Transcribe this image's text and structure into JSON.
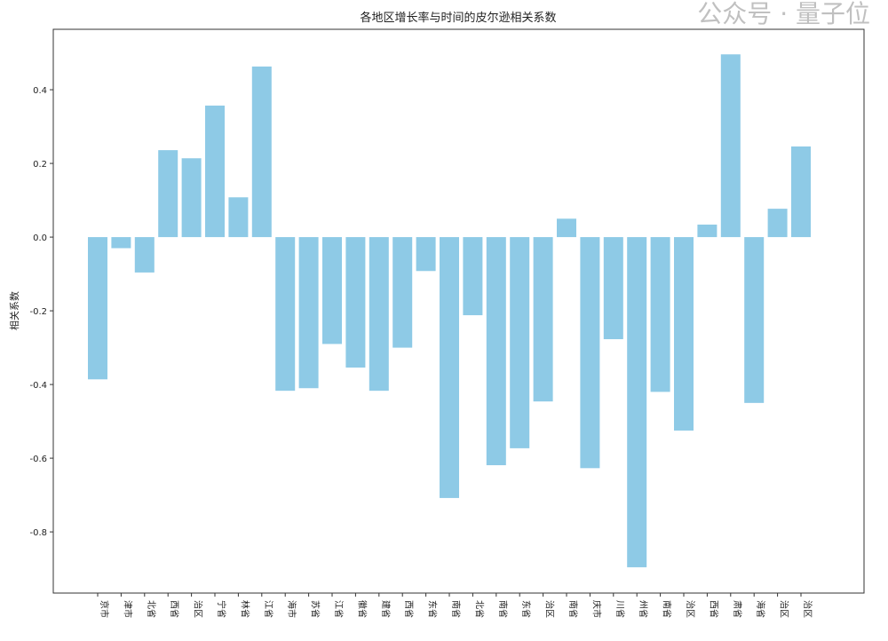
{
  "chart_data": {
    "type": "bar",
    "title": "各地区增长率与时间的皮尔逊相关系数",
    "xlabel": "",
    "ylabel": "相关系数",
    "ylim": [
      -0.966,
      0.564
    ],
    "yticks": [
      -0.8,
      -0.6,
      -0.4,
      -0.2,
      0.0,
      0.2,
      0.4
    ],
    "grid": false,
    "bar_color": "#8ecae6",
    "categories": [
      "京市",
      "津市",
      "北省",
      "西省",
      "治区",
      "宁省",
      "林省",
      "江省",
      "海市",
      "苏省",
      "江省",
      "徽省",
      "建省",
      "西省",
      "东省",
      "南省",
      "北省",
      "南省",
      "东省",
      "治区",
      "南省",
      "庆市",
      "川省",
      "州省",
      "南省",
      "治区",
      "西省",
      "肃省",
      "海省",
      "治区",
      "治区"
    ],
    "values": [
      -0.386,
      -0.03,
      -0.096,
      0.236,
      0.214,
      0.357,
      0.108,
      0.463,
      -0.417,
      -0.41,
      -0.29,
      -0.354,
      -0.417,
      -0.3,
      -0.092,
      -0.708,
      -0.212,
      -0.619,
      -0.573,
      -0.446,
      0.05,
      -0.627,
      -0.277,
      -0.896,
      -0.42,
      -0.525,
      0.034,
      0.496,
      -0.45,
      0.077,
      0.246
    ]
  },
  "watermark": "公众号 · 量子位"
}
